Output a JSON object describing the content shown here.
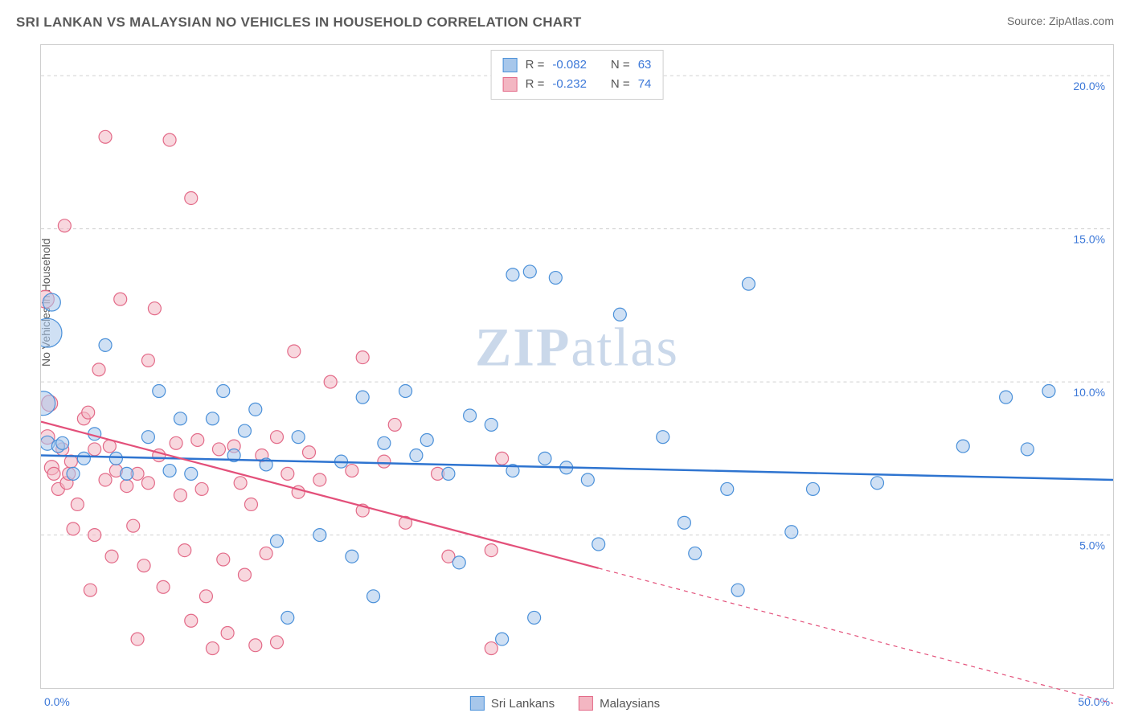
{
  "title": "SRI LANKAN VS MALAYSIAN NO VEHICLES IN HOUSEHOLD CORRELATION CHART",
  "source_label": "Source: ZipAtlas.com",
  "ylabel": "No Vehicles in Household",
  "watermark_bold": "ZIP",
  "watermark_light": "atlas",
  "chart": {
    "type": "scatter",
    "background_color": "#ffffff",
    "grid_color": "#d0d0d0",
    "border_color": "#cfcfcf",
    "xlim": [
      0,
      50
    ],
    "ylim": [
      0,
      21
    ],
    "yticks": [
      5.0,
      10.0,
      15.0,
      20.0
    ],
    "ytick_fmt_suffix": "%",
    "xtick_min_label": "0.0%",
    "xtick_max_label": "50.0%",
    "label_color": "#3c78d8",
    "label_fontsize": 14,
    "title_fontsize": 17,
    "title_color": "#5a5a5a",
    "watermark_color": "#9fb9d9",
    "watermark_fontsize": 68,
    "point_default_radius": 8,
    "point_stroke_width": 1.2,
    "series": [
      {
        "name": "Sri Lankans",
        "fill": "#a7c7eb",
        "stroke": "#4a90d9",
        "fill_opacity": 0.55,
        "trend": {
          "stroke": "#2e74d0",
          "stroke_width": 2.5,
          "y_at_x0": 7.6,
          "y_at_x50": 6.8,
          "solid_until_x": 50
        },
        "legend": {
          "r_label": "R = ",
          "r_value": "-0.082",
          "n_label": "N = ",
          "n_value": "63"
        },
        "points": [
          {
            "x": 0.3,
            "y": 11.6,
            "r": 18
          },
          {
            "x": 0.1,
            "y": 9.3,
            "r": 15
          },
          {
            "x": 0.5,
            "y": 12.6,
            "r": 11
          },
          {
            "x": 0.3,
            "y": 8.0,
            "r": 9
          },
          {
            "x": 0.8,
            "y": 7.9,
            "r": 8
          },
          {
            "x": 1.0,
            "y": 8.0,
            "r": 8
          },
          {
            "x": 1.5,
            "y": 7.0,
            "r": 8
          },
          {
            "x": 2.0,
            "y": 7.5,
            "r": 8
          },
          {
            "x": 2.5,
            "y": 8.3,
            "r": 8
          },
          {
            "x": 3.0,
            "y": 11.2,
            "r": 8
          },
          {
            "x": 3.5,
            "y": 7.5,
            "r": 8
          },
          {
            "x": 4.0,
            "y": 7.0,
            "r": 8
          },
          {
            "x": 5.0,
            "y": 8.2,
            "r": 8
          },
          {
            "x": 5.5,
            "y": 9.7,
            "r": 8
          },
          {
            "x": 6.0,
            "y": 7.1,
            "r": 8
          },
          {
            "x": 6.5,
            "y": 8.8,
            "r": 8
          },
          {
            "x": 7.0,
            "y": 7.0,
            "r": 8
          },
          {
            "x": 8.0,
            "y": 8.8,
            "r": 8
          },
          {
            "x": 8.5,
            "y": 9.7,
            "r": 8
          },
          {
            "x": 9.0,
            "y": 7.6,
            "r": 8
          },
          {
            "x": 9.5,
            "y": 8.4,
            "r": 8
          },
          {
            "x": 10.0,
            "y": 9.1,
            "r": 8
          },
          {
            "x": 10.5,
            "y": 7.3,
            "r": 8
          },
          {
            "x": 11.0,
            "y": 4.8,
            "r": 8
          },
          {
            "x": 11.5,
            "y": 2.3,
            "r": 8
          },
          {
            "x": 12.0,
            "y": 8.2,
            "r": 8
          },
          {
            "x": 13.0,
            "y": 5.0,
            "r": 8
          },
          {
            "x": 14.0,
            "y": 7.4,
            "r": 8
          },
          {
            "x": 14.5,
            "y": 4.3,
            "r": 8
          },
          {
            "x": 15.0,
            "y": 9.5,
            "r": 8
          },
          {
            "x": 15.5,
            "y": 3.0,
            "r": 8
          },
          {
            "x": 16.0,
            "y": 8.0,
            "r": 8
          },
          {
            "x": 17.0,
            "y": 9.7,
            "r": 8
          },
          {
            "x": 17.5,
            "y": 7.6,
            "r": 8
          },
          {
            "x": 18.0,
            "y": 8.1,
            "r": 8
          },
          {
            "x": 19.0,
            "y": 7.0,
            "r": 8
          },
          {
            "x": 19.5,
            "y": 4.1,
            "r": 8
          },
          {
            "x": 20.0,
            "y": 8.9,
            "r": 8
          },
          {
            "x": 21.0,
            "y": 8.6,
            "r": 8
          },
          {
            "x": 21.5,
            "y": 1.6,
            "r": 8
          },
          {
            "x": 22.0,
            "y": 7.1,
            "r": 8
          },
          {
            "x": 22.0,
            "y": 13.5,
            "r": 8
          },
          {
            "x": 22.8,
            "y": 13.6,
            "r": 8
          },
          {
            "x": 23.5,
            "y": 7.5,
            "r": 8
          },
          {
            "x": 23.0,
            "y": 2.3,
            "r": 8
          },
          {
            "x": 24.0,
            "y": 13.4,
            "r": 8
          },
          {
            "x": 24.5,
            "y": 7.2,
            "r": 8
          },
          {
            "x": 25.5,
            "y": 6.8,
            "r": 8
          },
          {
            "x": 26.0,
            "y": 4.7,
            "r": 8
          },
          {
            "x": 27.0,
            "y": 12.2,
            "r": 8
          },
          {
            "x": 29.0,
            "y": 8.2,
            "r": 8
          },
          {
            "x": 30.0,
            "y": 5.4,
            "r": 8
          },
          {
            "x": 30.5,
            "y": 4.4,
            "r": 8
          },
          {
            "x": 32.0,
            "y": 6.5,
            "r": 8
          },
          {
            "x": 32.5,
            "y": 3.2,
            "r": 8
          },
          {
            "x": 33.0,
            "y": 13.2,
            "r": 8
          },
          {
            "x": 35.0,
            "y": 5.1,
            "r": 8
          },
          {
            "x": 36.0,
            "y": 6.5,
            "r": 8
          },
          {
            "x": 39.0,
            "y": 6.7,
            "r": 8
          },
          {
            "x": 43.0,
            "y": 7.9,
            "r": 8
          },
          {
            "x": 45.0,
            "y": 9.5,
            "r": 8
          },
          {
            "x": 46.0,
            "y": 7.8,
            "r": 8
          },
          {
            "x": 47.0,
            "y": 9.7,
            "r": 8
          }
        ]
      },
      {
        "name": "Malaysians",
        "fill": "#f3b6c2",
        "stroke": "#e36a88",
        "fill_opacity": 0.55,
        "trend": {
          "stroke": "#e3507a",
          "stroke_width": 2.2,
          "y_at_x0": 8.7,
          "y_at_x50": -0.5,
          "solid_until_x": 26
        },
        "legend": {
          "r_label": "R = ",
          "r_value": "-0.232",
          "n_label": "N = ",
          "n_value": "74"
        },
        "points": [
          {
            "x": 0.2,
            "y": 12.7,
            "r": 11
          },
          {
            "x": 0.4,
            "y": 9.3,
            "r": 10
          },
          {
            "x": 0.3,
            "y": 8.2,
            "r": 9
          },
          {
            "x": 0.5,
            "y": 7.2,
            "r": 9
          },
          {
            "x": 0.6,
            "y": 7.0,
            "r": 8
          },
          {
            "x": 0.8,
            "y": 6.5,
            "r": 8
          },
          {
            "x": 1.0,
            "y": 7.8,
            "r": 8
          },
          {
            "x": 1.1,
            "y": 15.1,
            "r": 8
          },
          {
            "x": 1.2,
            "y": 6.7,
            "r": 8
          },
          {
            "x": 1.3,
            "y": 7.0,
            "r": 8
          },
          {
            "x": 1.4,
            "y": 7.4,
            "r": 8
          },
          {
            "x": 1.5,
            "y": 5.2,
            "r": 8
          },
          {
            "x": 1.7,
            "y": 6.0,
            "r": 8
          },
          {
            "x": 2.0,
            "y": 8.8,
            "r": 8
          },
          {
            "x": 2.2,
            "y": 9.0,
            "r": 8
          },
          {
            "x": 2.3,
            "y": 3.2,
            "r": 8
          },
          {
            "x": 2.5,
            "y": 7.8,
            "r": 8
          },
          {
            "x": 2.5,
            "y": 5.0,
            "r": 8
          },
          {
            "x": 2.7,
            "y": 10.4,
            "r": 8
          },
          {
            "x": 3.0,
            "y": 18.0,
            "r": 8
          },
          {
            "x": 3.0,
            "y": 6.8,
            "r": 8
          },
          {
            "x": 3.2,
            "y": 7.9,
            "r": 8
          },
          {
            "x": 3.3,
            "y": 4.3,
            "r": 8
          },
          {
            "x": 3.5,
            "y": 7.1,
            "r": 8
          },
          {
            "x": 3.7,
            "y": 12.7,
            "r": 8
          },
          {
            "x": 4.0,
            "y": 6.6,
            "r": 8
          },
          {
            "x": 4.3,
            "y": 5.3,
            "r": 8
          },
          {
            "x": 4.5,
            "y": 7.0,
            "r": 8
          },
          {
            "x": 4.5,
            "y": 1.6,
            "r": 8
          },
          {
            "x": 4.8,
            "y": 4.0,
            "r": 8
          },
          {
            "x": 5.0,
            "y": 10.7,
            "r": 8
          },
          {
            "x": 5.0,
            "y": 6.7,
            "r": 8
          },
          {
            "x": 5.3,
            "y": 12.4,
            "r": 8
          },
          {
            "x": 5.5,
            "y": 7.6,
            "r": 8
          },
          {
            "x": 5.7,
            "y": 3.3,
            "r": 8
          },
          {
            "x": 6.0,
            "y": 17.9,
            "r": 8
          },
          {
            "x": 6.3,
            "y": 8.0,
            "r": 8
          },
          {
            "x": 6.5,
            "y": 6.3,
            "r": 8
          },
          {
            "x": 6.7,
            "y": 4.5,
            "r": 8
          },
          {
            "x": 7.0,
            "y": 2.2,
            "r": 8
          },
          {
            "x": 7.0,
            "y": 16.0,
            "r": 8
          },
          {
            "x": 7.3,
            "y": 8.1,
            "r": 8
          },
          {
            "x": 7.5,
            "y": 6.5,
            "r": 8
          },
          {
            "x": 7.7,
            "y": 3.0,
            "r": 8
          },
          {
            "x": 8.0,
            "y": 1.3,
            "r": 8
          },
          {
            "x": 8.3,
            "y": 7.8,
            "r": 8
          },
          {
            "x": 8.5,
            "y": 4.2,
            "r": 8
          },
          {
            "x": 8.7,
            "y": 1.8,
            "r": 8
          },
          {
            "x": 9.0,
            "y": 7.9,
            "r": 8
          },
          {
            "x": 9.3,
            "y": 6.7,
            "r": 8
          },
          {
            "x": 9.5,
            "y": 3.7,
            "r": 8
          },
          {
            "x": 9.8,
            "y": 6.0,
            "r": 8
          },
          {
            "x": 10.0,
            "y": 1.4,
            "r": 8
          },
          {
            "x": 10.3,
            "y": 7.6,
            "r": 8
          },
          {
            "x": 10.5,
            "y": 4.4,
            "r": 8
          },
          {
            "x": 11.0,
            "y": 8.2,
            "r": 8
          },
          {
            "x": 11.0,
            "y": 1.5,
            "r": 8
          },
          {
            "x": 11.5,
            "y": 7.0,
            "r": 8
          },
          {
            "x": 11.8,
            "y": 11.0,
            "r": 8
          },
          {
            "x": 12.0,
            "y": 6.4,
            "r": 8
          },
          {
            "x": 12.5,
            "y": 7.7,
            "r": 8
          },
          {
            "x": 13.0,
            "y": 6.8,
            "r": 8
          },
          {
            "x": 13.5,
            "y": 10.0,
            "r": 8
          },
          {
            "x": 14.5,
            "y": 7.1,
            "r": 8
          },
          {
            "x": 15.0,
            "y": 10.8,
            "r": 8
          },
          {
            "x": 15.0,
            "y": 5.8,
            "r": 8
          },
          {
            "x": 16.0,
            "y": 7.4,
            "r": 8
          },
          {
            "x": 16.5,
            "y": 8.6,
            "r": 8
          },
          {
            "x": 17.0,
            "y": 5.4,
            "r": 8
          },
          {
            "x": 18.5,
            "y": 7.0,
            "r": 8
          },
          {
            "x": 19.0,
            "y": 4.3,
            "r": 8
          },
          {
            "x": 21.0,
            "y": 1.3,
            "r": 8
          },
          {
            "x": 21.0,
            "y": 4.5,
            "r": 8
          },
          {
            "x": 21.5,
            "y": 7.5,
            "r": 8
          }
        ]
      }
    ]
  },
  "bottom_legend": [
    {
      "label": "Sri Lankans",
      "fill": "#a7c7eb",
      "stroke": "#4a90d9"
    },
    {
      "label": "Malaysians",
      "fill": "#f3b6c2",
      "stroke": "#e36a88"
    }
  ]
}
